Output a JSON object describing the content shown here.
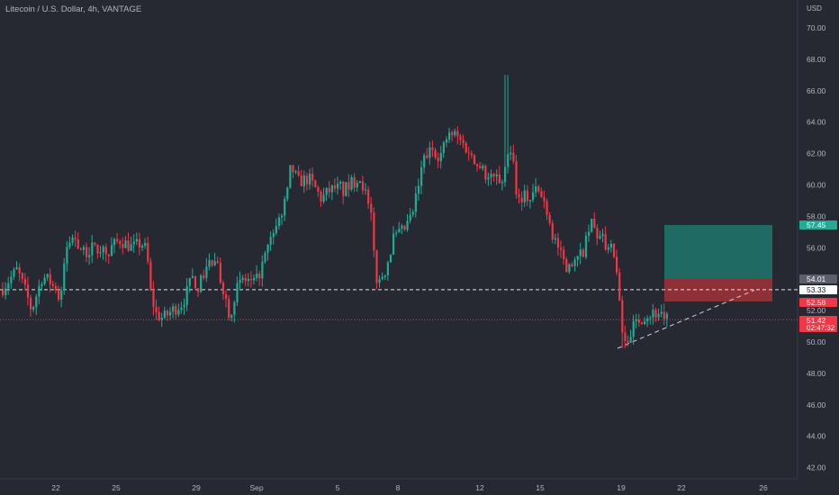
{
  "header": {
    "title": "Litecoin / U.S. Dollar, 4h, VANTAGE"
  },
  "price_scale": {
    "currency": "USD",
    "tick_labels": [
      "42.00",
      "44.00",
      "46.00",
      "48.00",
      "50.00",
      "52.00",
      "54.00",
      "56.00",
      "58.00",
      "60.00",
      "62.00",
      "64.00",
      "66.00",
      "68.00",
      "70.00"
    ]
  },
  "time_scale": {
    "tick_labels": [
      "22",
      "25",
      "29",
      "Sep",
      "5",
      "8",
      "12",
      "15",
      "19",
      "22",
      "26"
    ]
  },
  "price_tags": [
    {
      "text": "57.45",
      "value": 57.45,
      "background": "#22ab94",
      "color": "#ffffff"
    },
    {
      "text": "54.01",
      "value": 54.01,
      "background": "#5d606b",
      "color": "#ffffff"
    },
    {
      "text": "53.33",
      "value": 53.33,
      "background": "#ffffff",
      "color": "#131722"
    },
    {
      "text": "52.58",
      "value": 52.58,
      "background": "#f23645",
      "color": "#ffffff"
    },
    {
      "text": "51.42",
      "value": 51.42,
      "background": "#f23645",
      "color": "#ffffff",
      "sub": "02:47:32"
    }
  ],
  "colors": {
    "background": "#262932",
    "up": "#22ab94",
    "down": "#f23645",
    "text": "#b2b5be",
    "target_zone": "#1f6b63",
    "stop_zone": "#8f3036"
  },
  "chart_data": {
    "type": "candlestick",
    "title": "Litecoin / U.S. Dollar, 4h, VANTAGE",
    "y_axis_unit": "USD",
    "ylim": [
      41.4,
      71.5
    ],
    "grid": false,
    "x_ticks": [
      "22",
      "25",
      "29",
      "Sep",
      "5",
      "8",
      "12",
      "15",
      "19",
      "22",
      "26"
    ],
    "close_path": [
      [
        0,
        53.3
      ],
      [
        18,
        54.6
      ],
      [
        28,
        53.1
      ],
      [
        34,
        52.0
      ],
      [
        46,
        54.2
      ],
      [
        60,
        53.6
      ],
      [
        66,
        52.2
      ],
      [
        70,
        54.8
      ],
      [
        74,
        56.3
      ],
      [
        82,
        56.7
      ],
      [
        92,
        55.6
      ],
      [
        104,
        56.1
      ],
      [
        118,
        55.8
      ],
      [
        132,
        56.5
      ],
      [
        146,
        56.0
      ],
      [
        156,
        56.3
      ],
      [
        162,
        55.8
      ],
      [
        166,
        53.2
      ],
      [
        172,
        51.8
      ],
      [
        180,
        51.5
      ],
      [
        190,
        52.0
      ],
      [
        202,
        52.5
      ],
      [
        212,
        54.0
      ],
      [
        220,
        53.5
      ],
      [
        230,
        55.1
      ],
      [
        240,
        54.8
      ],
      [
        248,
        53.2
      ],
      [
        254,
        51.7
      ],
      [
        262,
        53.5
      ],
      [
        272,
        53.9
      ],
      [
        282,
        53.6
      ],
      [
        292,
        55.2
      ],
      [
        302,
        56.8
      ],
      [
        312,
        58.2
      ],
      [
        318,
        59.4
      ],
      [
        322,
        61.2
      ],
      [
        330,
        60.2
      ],
      [
        342,
        60.4
      ],
      [
        350,
        59.7
      ],
      [
        356,
        59.1
      ],
      [
        364,
        59.6
      ],
      [
        372,
        59.8
      ],
      [
        380,
        59.6
      ],
      [
        390,
        60.1
      ],
      [
        398,
        60.6
      ],
      [
        404,
        59.7
      ],
      [
        412,
        57.6
      ],
      [
        416,
        54.2
      ],
      [
        420,
        53.8
      ],
      [
        428,
        54.8
      ],
      [
        436,
        56.6
      ],
      [
        446,
        57.0
      ],
      [
        456,
        57.9
      ],
      [
        462,
        59.4
      ],
      [
        470,
        61.7
      ],
      [
        480,
        62.3
      ],
      [
        488,
        61.8
      ],
      [
        496,
        63.1
      ],
      [
        504,
        63.2
      ],
      [
        512,
        62.7
      ],
      [
        522,
        62.0
      ],
      [
        530,
        61.3
      ],
      [
        538,
        60.7
      ],
      [
        546,
        60.4
      ],
      [
        554,
        60.3
      ],
      [
        560,
        60.8
      ],
      [
        564,
        62.6
      ],
      [
        568,
        62.1
      ],
      [
        574,
        59.0
      ],
      [
        580,
        59.4
      ],
      [
        588,
        59.1
      ],
      [
        594,
        59.7
      ],
      [
        600,
        59.3
      ],
      [
        606,
        58.6
      ],
      [
        612,
        57.0
      ],
      [
        618,
        56.2
      ],
      [
        626,
        55.0
      ],
      [
        632,
        54.6
      ],
      [
        640,
        55.2
      ],
      [
        648,
        55.9
      ],
      [
        652,
        56.8
      ],
      [
        656,
        57.6
      ],
      [
        662,
        56.8
      ],
      [
        670,
        56.3
      ],
      [
        678,
        55.8
      ],
      [
        684,
        54.7
      ],
      [
        688,
        51.5
      ],
      [
        692,
        49.9
      ],
      [
        698,
        50.5
      ],
      [
        706,
        51.3
      ],
      [
        714,
        51.7
      ],
      [
        722,
        51.8
      ],
      [
        732,
        51.9
      ],
      [
        740,
        51.4
      ]
    ],
    "high": 67.0,
    "low": 49.6,
    "last_price": 51.42,
    "countdown": "02:47:32",
    "trade_setup": {
      "entry": 53.33,
      "target": 57.45,
      "stop": 52.58,
      "level": 54.01
    },
    "horizontal_lines": [
      53.33,
      51.42
    ],
    "trendline": {
      "from": {
        "time": "Sep 19",
        "price": 49.6
      },
      "to": {
        "time": "Sep 24",
        "price": 53.3
      }
    }
  }
}
